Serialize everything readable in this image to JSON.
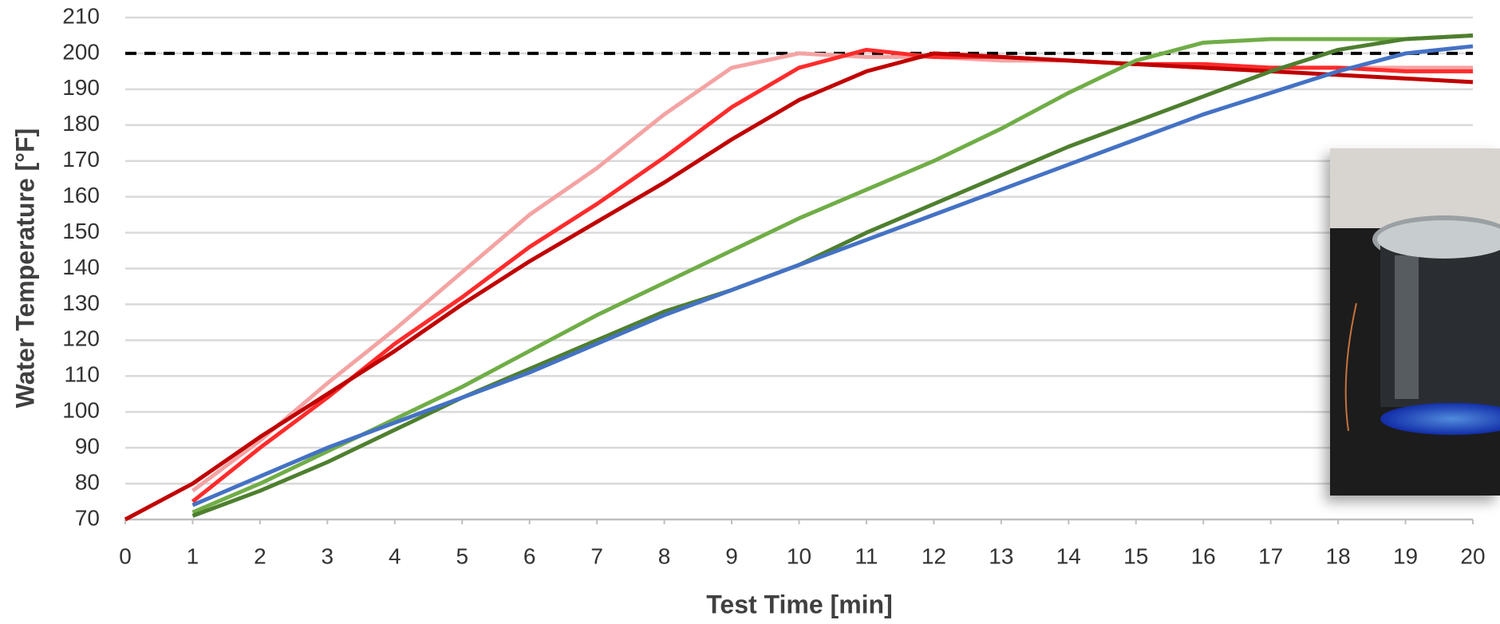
{
  "chart_data": {
    "type": "line",
    "x_label": "Test Time [min]",
    "y_label": "Water Temperature [°F]",
    "x": [
      0,
      1,
      2,
      3,
      4,
      5,
      6,
      7,
      8,
      9,
      10,
      11,
      12,
      13,
      14,
      15,
      16,
      17,
      18,
      19,
      20
    ],
    "series": [
      {
        "color": "#f5a3a3",
        "values": [
          null,
          78,
          92,
          108,
          123,
          139,
          155,
          168,
          183,
          196,
          200,
          199,
          199,
          198,
          198,
          197,
          197,
          196,
          196,
          196,
          196
        ]
      },
      {
        "color": "#ff2b2b",
        "values": [
          null,
          75,
          90,
          104,
          119,
          132,
          146,
          158,
          171,
          185,
          196,
          201,
          199,
          199,
          198,
          197,
          197,
          196,
          196,
          195,
          195
        ]
      },
      {
        "color": "#c00000",
        "values": [
          70,
          80,
          93,
          105,
          117,
          130,
          142,
          153,
          164,
          176,
          187,
          195,
          200,
          199,
          198,
          197,
          196,
          195,
          194,
          193,
          192
        ]
      },
      {
        "color": "#70ad47",
        "values": [
          null,
          72,
          80,
          89,
          98,
          107,
          117,
          127,
          136,
          145,
          154,
          162,
          170,
          179,
          189,
          198,
          203,
          204,
          204,
          204,
          205
        ]
      },
      {
        "color": "#4e7f2f",
        "values": [
          null,
          71,
          78,
          86,
          95,
          104,
          112,
          120,
          128,
          134,
          141,
          150,
          158,
          166,
          174,
          181,
          188,
          195,
          201,
          204,
          205
        ]
      },
      {
        "color": "#4472c4",
        "values": [
          null,
          74,
          82,
          90,
          97,
          104,
          111,
          119,
          127,
          134,
          141,
          148,
          155,
          162,
          169,
          176,
          183,
          189,
          195,
          200,
          202
        ]
      }
    ],
    "reference_line": {
      "value": 200,
      "color": "#000000",
      "dashed": true
    },
    "xlim": [
      0,
      20
    ],
    "xticks": [
      0,
      1,
      2,
      3,
      4,
      5,
      6,
      7,
      8,
      9,
      10,
      11,
      12,
      13,
      14,
      15,
      16,
      17,
      18,
      19,
      20
    ],
    "ylim": [
      70,
      210
    ],
    "yticks": [
      70,
      80,
      90,
      100,
      110,
      120,
      130,
      140,
      150,
      160,
      170,
      180,
      190,
      200,
      210
    ],
    "grid": true
  }
}
